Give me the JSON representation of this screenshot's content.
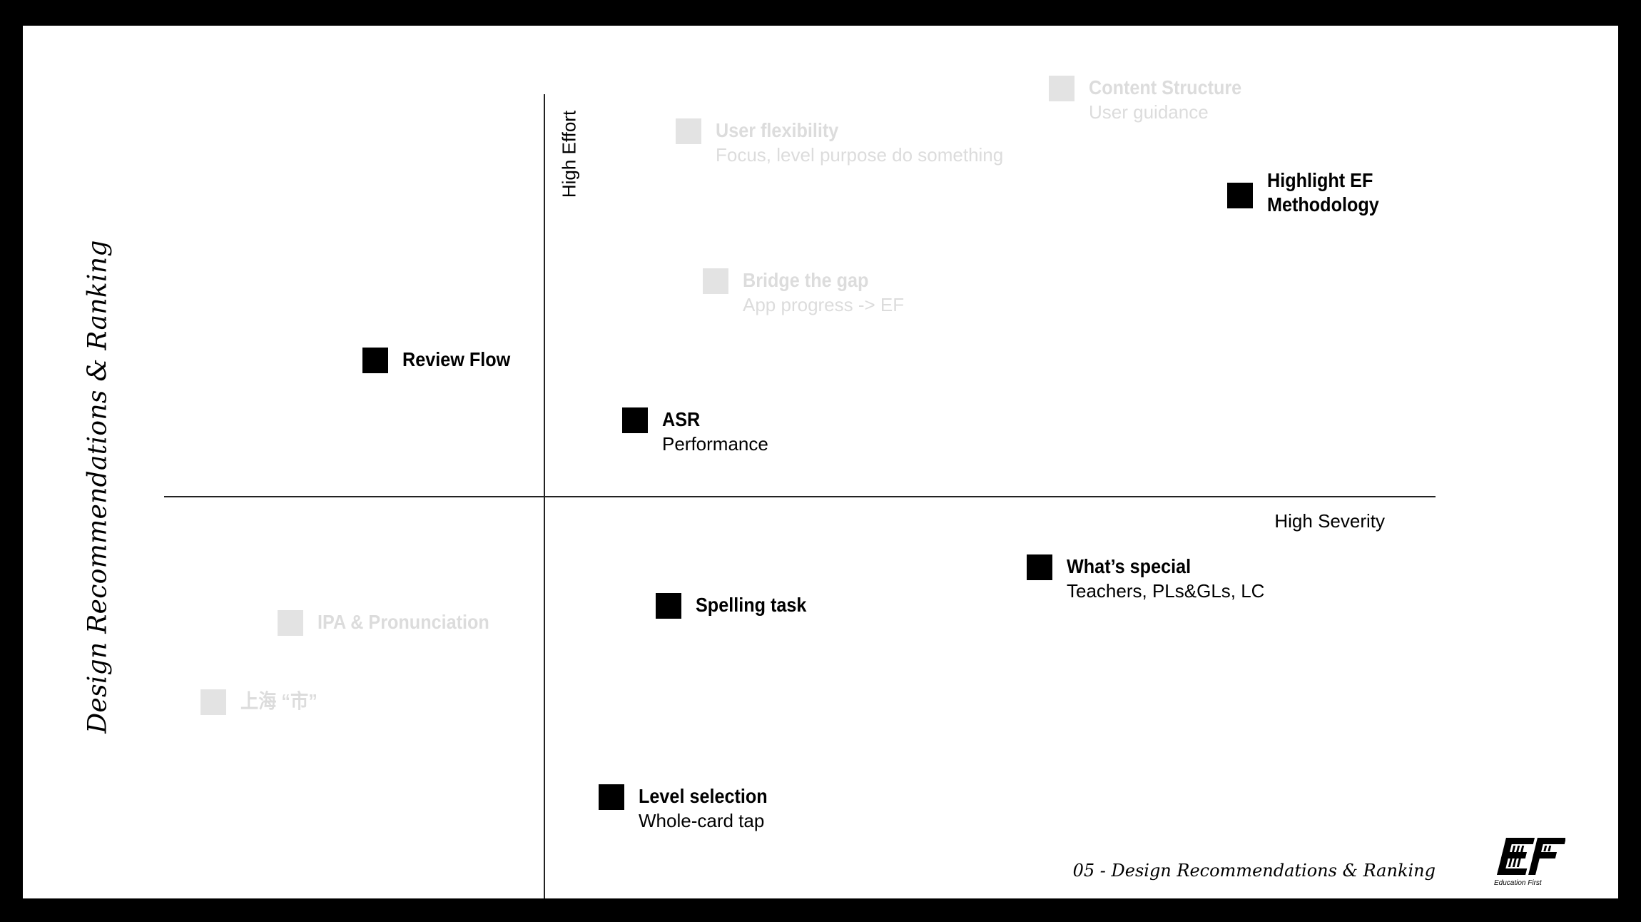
{
  "slide": {
    "vertical_title": "Design Recommendations & Ranking",
    "footer": "05 - Design Recommendations & Ranking",
    "logo_caption": "Education First"
  },
  "axes": {
    "y_label": "High Effort",
    "x_label": "High Severity"
  },
  "items": {
    "content_structure": {
      "title": "Content Structure",
      "subtitle": "User guidance",
      "emphasis": "faded"
    },
    "user_flexibility": {
      "title": "User flexibility",
      "subtitle": "Focus, level purpose do something",
      "emphasis": "faded"
    },
    "highlight_ef": {
      "title_line1": "Highlight EF",
      "title_line2": "Methodology",
      "emphasis": "active"
    },
    "bridge_gap": {
      "title": "Bridge the gap",
      "subtitle": "App progress -> EF",
      "emphasis": "faded"
    },
    "review_flow": {
      "title": "Review Flow",
      "emphasis": "active"
    },
    "asr": {
      "title": "ASR",
      "subtitle": "Performance",
      "emphasis": "active"
    },
    "whats_special": {
      "title": "What’s special",
      "subtitle": "Teachers, PLs&GLs, LC",
      "emphasis": "active"
    },
    "spelling_task": {
      "title": "Spelling task",
      "emphasis": "active"
    },
    "ipa": {
      "title": "IPA & Pronunciation",
      "emphasis": "faded"
    },
    "shanghai": {
      "title": "上海 “市”",
      "emphasis": "faded"
    },
    "level_selection": {
      "title": "Level selection",
      "subtitle": "Whole-card tap",
      "emphasis": "active"
    }
  },
  "colors": {
    "background": "#000000",
    "slide": "#ffffff",
    "active_marker": "#000000",
    "faded_marker": "#e3e3e3",
    "faded_text": "#dcdcdc"
  }
}
